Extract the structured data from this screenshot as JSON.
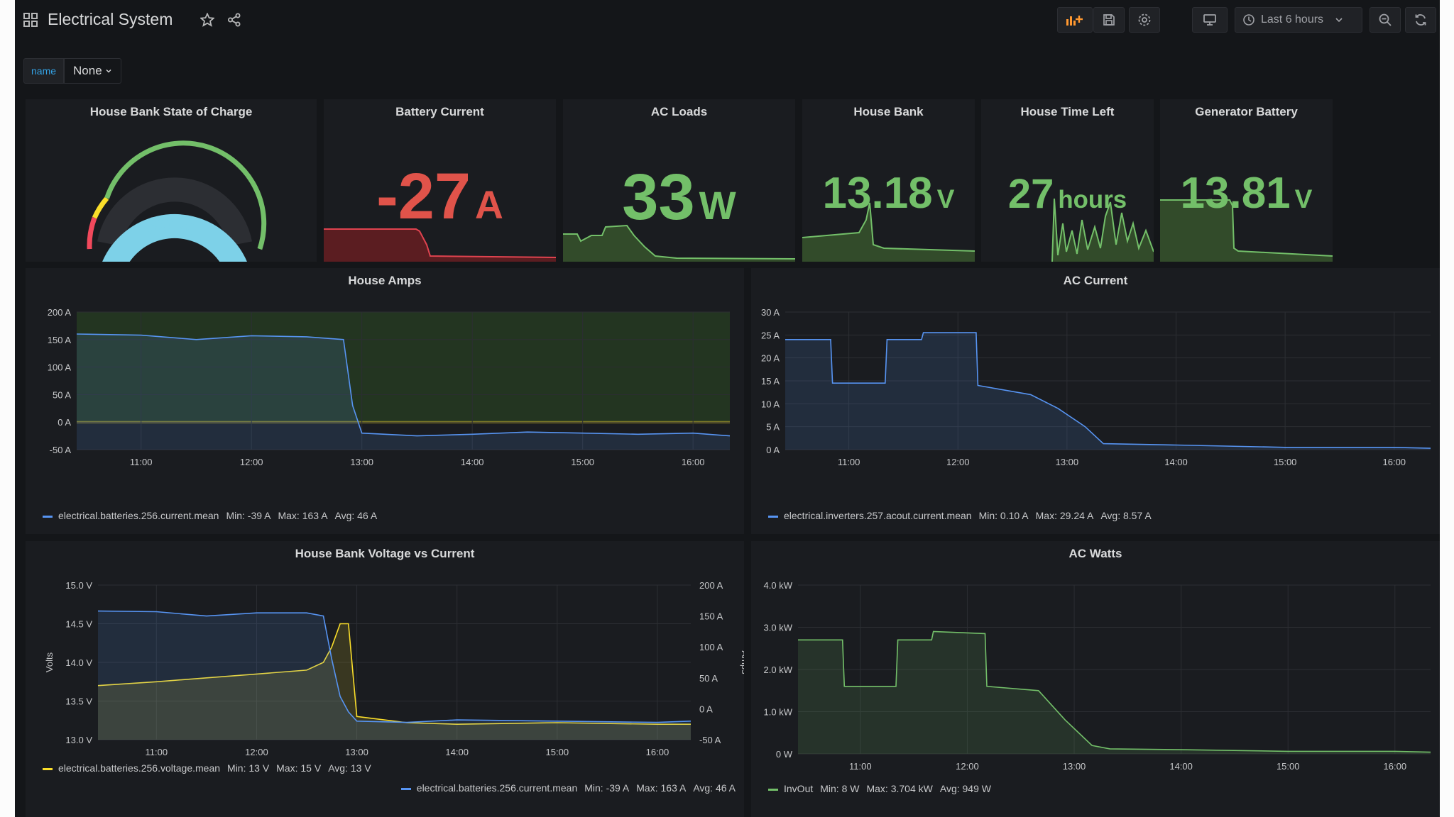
{
  "dashboard": {
    "title": "Electrical System",
    "time_picker_label": "Last 6 hours"
  },
  "variables": {
    "label": "name",
    "value": "None"
  },
  "colors": {
    "green": "#73bf69",
    "red": "#f2495c",
    "blue": "#5794f2",
    "yellow": "#fade2a",
    "gauge": "#7dd1e8"
  },
  "stat_panels": {
    "soc": {
      "title": "House Bank State of Charge",
      "value": "90%",
      "percent": 90
    },
    "battery_current": {
      "title": "Battery Current",
      "value": "-27",
      "unit": "A"
    },
    "ac_loads": {
      "title": "AC Loads",
      "value": "33",
      "unit": "W"
    },
    "house_bank": {
      "title": "House Bank",
      "value": "13.18",
      "unit": "V"
    },
    "time_left": {
      "title": "House Time Left",
      "value": "27",
      "unit": "hours"
    },
    "gen_battery": {
      "title": "Generator Battery",
      "value": "13.81",
      "unit": "V"
    }
  },
  "graphs": {
    "house_amps": {
      "title": "House Amps",
      "legend": {
        "series": "electrical.batteries.256.current.mean",
        "min": "Min: -39 A",
        "max": "Max: 163 A",
        "avg": "Avg: 46 A"
      }
    },
    "ac_current": {
      "title": "AC Current",
      "legend": {
        "series": "electrical.inverters.257.acout.current.mean",
        "min": "Min: 0.10 A",
        "max": "Max: 29.24 A",
        "avg": "Avg: 8.57 A"
      }
    },
    "voltage_vs_current": {
      "title": "House Bank Voltage vs Current",
      "left_axis_label": "Volts",
      "right_axis_label": "Amps",
      "legend1": {
        "series": "electrical.batteries.256.voltage.mean",
        "min": "Min: 13 V",
        "max": "Max: 15 V",
        "avg": "Avg: 13 V"
      },
      "legend2": {
        "series": "electrical.batteries.256.current.mean",
        "min": "Min: -39 A",
        "max": "Max: 163 A",
        "avg": "Avg: 46 A"
      }
    },
    "ac_watts": {
      "title": "AC Watts",
      "legend": {
        "series": "InvOut",
        "min": "Min: 8 W",
        "max": "Max: 3.704 kW",
        "avg": "Avg: 949 W"
      }
    }
  },
  "chart_data": [
    {
      "type": "line",
      "title": "House Amps",
      "x": [
        "10:25",
        "11:00",
        "11:30",
        "12:00",
        "12:30",
        "12:50",
        "12:55",
        "13:00",
        "13:30",
        "14:00",
        "14:30",
        "15:00",
        "15:30",
        "16:00",
        "16:20"
      ],
      "ylim": [
        -50,
        200
      ],
      "yticks": [
        "200 A",
        "150 A",
        "100 A",
        "50 A",
        "0 A",
        "-50 A"
      ],
      "xticks": [
        "11:00",
        "12:00",
        "13:00",
        "14:00",
        "15:00",
        "16:00"
      ],
      "series": [
        {
          "name": "electrical.batteries.256.current.mean",
          "values": [
            160,
            158,
            150,
            157,
            155,
            150,
            30,
            -20,
            -25,
            -22,
            -18,
            -20,
            -22,
            -20,
            -25
          ]
        }
      ]
    },
    {
      "type": "line",
      "title": "AC Current",
      "x": [
        "10:25",
        "10:50",
        "10:51",
        "11:20",
        "11:21",
        "11:40",
        "11:41",
        "12:10",
        "12:11",
        "12:40",
        "12:55",
        "13:10",
        "13:20",
        "14:00",
        "15:00",
        "16:00",
        "16:20"
      ],
      "ylim": [
        0,
        30
      ],
      "yticks": [
        "30 A",
        "25 A",
        "20 A",
        "15 A",
        "10 A",
        "5 A",
        "0 A"
      ],
      "xticks": [
        "11:00",
        "12:00",
        "13:00",
        "14:00",
        "15:00",
        "16:00"
      ],
      "series": [
        {
          "name": "electrical.inverters.257.acout.current.mean",
          "values": [
            24,
            24,
            14.5,
            14.5,
            24,
            24,
            25.5,
            25.5,
            14,
            12,
            9,
            5,
            1.3,
            1,
            0.5,
            0.5,
            0.3
          ]
        }
      ]
    },
    {
      "type": "line",
      "title": "House Bank Voltage vs Current",
      "x": [
        "10:25",
        "11:00",
        "11:30",
        "12:00",
        "12:30",
        "12:40",
        "12:45",
        "12:50",
        "12:55",
        "13:00",
        "13:30",
        "14:00",
        "15:00",
        "16:00",
        "16:20"
      ],
      "ylim_left": [
        13.0,
        15.0
      ],
      "ylim_right": [
        -50,
        200
      ],
      "yticks_left": [
        "15.0 V",
        "14.5 V",
        "14.0 V",
        "13.5 V",
        "13.0 V"
      ],
      "yticks_right": [
        "200 A",
        "150 A",
        "100 A",
        "50 A",
        "0 A",
        "-50 A"
      ],
      "xticks": [
        "11:00",
        "12:00",
        "13:00",
        "14:00",
        "15:00",
        "16:00"
      ],
      "series": [
        {
          "name": "electrical.batteries.256.voltage.mean",
          "values": [
            13.7,
            13.75,
            13.8,
            13.85,
            13.9,
            14.0,
            14.2,
            14.5,
            14.5,
            13.3,
            13.22,
            13.2,
            13.22,
            13.2,
            13.2
          ]
        },
        {
          "name": "electrical.batteries.256.current.mean",
          "values": [
            158,
            157,
            150,
            155,
            155,
            150,
            80,
            20,
            -5,
            -20,
            -22,
            -18,
            -20,
            -22,
            -20
          ]
        }
      ]
    },
    {
      "type": "line",
      "title": "AC Watts",
      "x": [
        "10:25",
        "10:50",
        "10:51",
        "11:20",
        "11:21",
        "11:40",
        "11:41",
        "12:10",
        "12:11",
        "12:40",
        "12:55",
        "13:10",
        "13:20",
        "14:00",
        "15:00",
        "16:00",
        "16:20"
      ],
      "ylim": [
        0,
        4000
      ],
      "yticks": [
        "4.0 kW",
        "3.0 kW",
        "2.0 kW",
        "1.0 kW",
        "0 W"
      ],
      "xticks": [
        "11:00",
        "12:00",
        "13:00",
        "14:00",
        "15:00",
        "16:00"
      ],
      "series": [
        {
          "name": "InvOut",
          "values": [
            2700,
            2700,
            1600,
            1600,
            2700,
            2700,
            2900,
            2850,
            1600,
            1500,
            800,
            200,
            120,
            100,
            60,
            60,
            40
          ]
        }
      ]
    }
  ]
}
